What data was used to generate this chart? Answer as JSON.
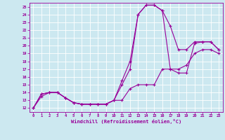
{
  "xlabel": "Windchill (Refroidissement éolien,°C)",
  "bg_color": "#cce8f0",
  "line_color": "#990099",
  "xlim": [
    -0.5,
    23.5
  ],
  "ylim": [
    11.5,
    25.5
  ],
  "xticks": [
    0,
    1,
    2,
    3,
    4,
    5,
    6,
    7,
    8,
    9,
    10,
    11,
    12,
    13,
    14,
    15,
    16,
    17,
    18,
    19,
    20,
    21,
    22,
    23
  ],
  "yticks": [
    12,
    13,
    14,
    15,
    16,
    17,
    18,
    19,
    20,
    21,
    22,
    23,
    24,
    25
  ],
  "curve_bottom_x": [
    0,
    1,
    2,
    3,
    4,
    5,
    6,
    7,
    8,
    9,
    10,
    11,
    12,
    13,
    14,
    15,
    16,
    17,
    18,
    19,
    20,
    21,
    22,
    23
  ],
  "curve_bottom_y": [
    12,
    13.8,
    14.0,
    14.0,
    13.3,
    12.7,
    12.5,
    12.5,
    12.5,
    12.5,
    13.0,
    13.0,
    14.5,
    15.0,
    15.0,
    15.0,
    17.0,
    17.0,
    17.0,
    17.5,
    19.0,
    19.5,
    19.5,
    19.0
  ],
  "curve_spike_x": [
    0,
    1,
    2,
    3,
    4,
    5,
    6,
    7,
    8,
    9,
    10,
    11,
    12,
    13,
    14,
    15,
    16,
    17,
    18,
    19,
    20,
    21,
    22,
    23
  ],
  "curve_spike_y": [
    12,
    13.8,
    14.0,
    14.0,
    13.3,
    12.7,
    12.5,
    12.5,
    12.5,
    12.5,
    13.0,
    15.0,
    17.0,
    24.0,
    25.2,
    25.2,
    24.5,
    17.0,
    16.5,
    16.5,
    20.3,
    20.5,
    20.5,
    19.5
  ],
  "curve_top_x": [
    0,
    1,
    2,
    3,
    4,
    5,
    6,
    7,
    8,
    9,
    10,
    11,
    12,
    13,
    14,
    15,
    16,
    17,
    18,
    19,
    20,
    21,
    22,
    23
  ],
  "curve_top_y": [
    12,
    13.5,
    14.0,
    14.0,
    13.3,
    12.7,
    12.5,
    12.5,
    12.5,
    12.5,
    13.0,
    15.5,
    18.0,
    24.0,
    25.2,
    25.2,
    24.5,
    22.5,
    19.5,
    19.5,
    20.5,
    20.5,
    20.5,
    19.5
  ]
}
